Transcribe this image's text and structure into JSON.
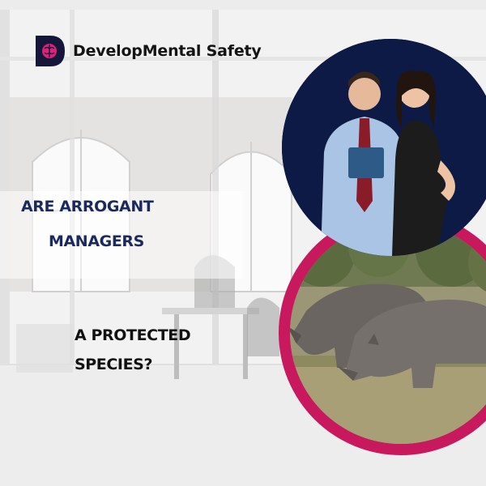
{
  "brand": {
    "logo_letter": "D",
    "name": "DevelopMental Safety"
  },
  "headline": {
    "line1": "ARE ARROGANT",
    "line2": "MANAGERS",
    "question_line1": "A PROTECTED",
    "question_line2": "SPECIES?"
  },
  "colors": {
    "navy": "#0d1a45",
    "headline_navy": "#1a2a5e",
    "magenta": "#c8195f",
    "logo_pink": "#e0217a"
  },
  "images": {
    "top_circle": "business-people-photo",
    "bottom_circle": "rhinos-grazing-photo"
  }
}
